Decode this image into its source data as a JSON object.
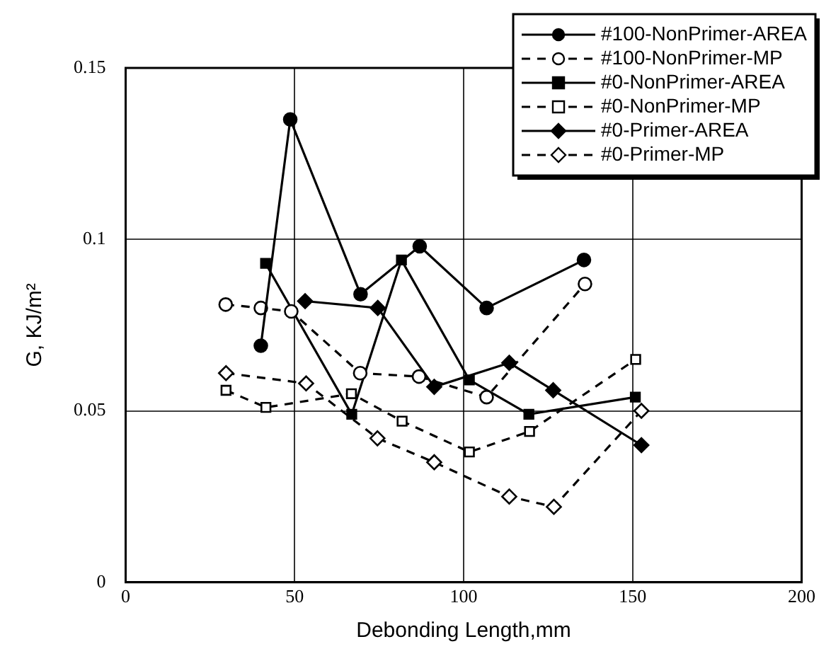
{
  "chart_data": {
    "type": "line",
    "xlabel": "Debonding Length,mm",
    "ylabel": "G, KJ/m²",
    "xlim": [
      0,
      200
    ],
    "xticks": [
      0,
      50,
      100,
      150,
      200
    ],
    "ylim": [
      0,
      0.15
    ],
    "yticks": [
      0,
      0.05,
      0.1,
      0.15
    ],
    "grid": true,
    "legend": "top right",
    "series": [
      {
        "name": "#100-NonPrimer-AREA",
        "color": "#000000",
        "marker": "circle",
        "line_style": "solid",
        "x": [
          40.0,
          48.7,
          69.5,
          87.0,
          106.8,
          135.6
        ],
        "values": [
          0.069,
          0.135,
          0.084,
          0.098,
          0.08,
          0.094
        ]
      },
      {
        "name": "#100-NonPrimer-MP",
        "color": "#000000",
        "marker": "circle",
        "line_style": "dashed",
        "x": [
          29.6,
          40.0,
          49.0,
          69.4,
          86.8,
          106.8,
          135.9
        ],
        "values": [
          0.081,
          0.08,
          0.079,
          0.061,
          0.06,
          0.054,
          0.087
        ]
      },
      {
        "name": "#0-NonPrimer-AREA",
        "color": "#000000",
        "marker": "square",
        "line_style": "solid",
        "x": [
          41.4,
          66.9,
          81.6,
          101.7,
          119.3,
          150.8
        ],
        "values": [
          0.093,
          0.049,
          0.094,
          0.059,
          0.049,
          0.054
        ]
      },
      {
        "name": "#0-NonPrimer-MP",
        "color": "#000000",
        "marker": "square",
        "line_style": "dashed",
        "x": [
          29.7,
          41.5,
          66.8,
          81.8,
          101.7,
          119.5,
          150.9
        ],
        "values": [
          0.056,
          0.051,
          0.055,
          0.047,
          0.038,
          0.044,
          0.065
        ]
      },
      {
        "name": "#0-Primer-AREA",
        "color": "#000000",
        "marker": "diamond",
        "line_style": "solid",
        "x": [
          53.1,
          74.6,
          91.3,
          113.5,
          126.5,
          152.6
        ],
        "values": [
          0.082,
          0.08,
          0.057,
          0.064,
          0.056,
          0.04
        ]
      },
      {
        "name": "#0-Primer-MP",
        "color": "#000000",
        "marker": "diamond",
        "line_style": "dashed",
        "x": [
          29.7,
          53.4,
          74.5,
          91.3,
          113.5,
          126.7,
          152.6
        ],
        "values": [
          0.061,
          0.058,
          0.042,
          0.035,
          0.025,
          0.022,
          0.05
        ]
      }
    ]
  }
}
